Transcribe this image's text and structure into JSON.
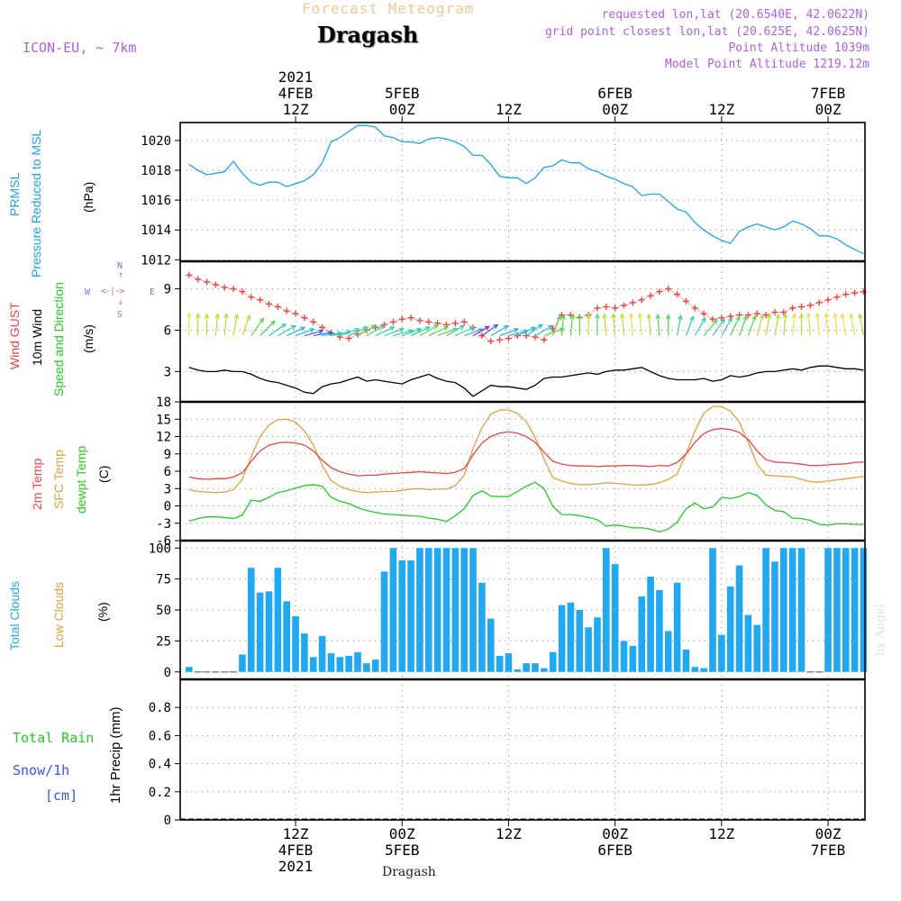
{
  "header": {
    "title": "Forecast Meteogram",
    "location": "Dragash",
    "model": "ICON-EU, ~ 7km",
    "requested": "requested lon,lat (20.6540E, 42.0622N)",
    "gridpoint": "grid point closest lon,lat (20.625E, 42.0625N)",
    "altitude": "Point Altitude 1039m",
    "model_altitude": "Model Point Altitude 1219.12m"
  },
  "footer": {
    "location": "Dragash",
    "watermark": "by Angel"
  },
  "time_axis": {
    "year": "2021",
    "ticks": [
      {
        "hour": 12,
        "top": "12Z",
        "bottom": "12Z",
        "date": "4FEB"
      },
      {
        "hour": 24,
        "top": "00Z",
        "bottom": "00Z",
        "date": "5FEB"
      },
      {
        "hour": 36,
        "top": "12Z",
        "bottom": "12Z",
        "date": ""
      },
      {
        "hour": 48,
        "top": "00Z",
        "bottom": "00Z",
        "date": "6FEB"
      },
      {
        "hour": 60,
        "top": "12Z",
        "bottom": "12Z",
        "date": ""
      },
      {
        "hour": 72,
        "top": "00Z",
        "bottom": "00Z",
        "date": "7FEB"
      }
    ]
  },
  "panel_labels": {
    "pressure": {
      "short": "PRMSL",
      "long": "Pressure Reduced to MSL",
      "unit": "(hPa)"
    },
    "wind": {
      "gust": "Wind GUST",
      "wind": "10m Wind",
      "speed": "Speed and Direction",
      "unit": "(m/s)",
      "compass": {
        "n": "N",
        "s": "S",
        "w": "W",
        "e": "E"
      }
    },
    "temp": {
      "t2m": "2m Temp",
      "sfc": "SFC Temp",
      "dewpt": "dewpt Temp",
      "unit": "(C)"
    },
    "clouds": {
      "total": "Total Clouds",
      "low": "Low Clouds",
      "unit": "(%)"
    },
    "precip": {
      "rain": "Total  Rain",
      "snow": "Snow/1h",
      "cm": "[cm]",
      "unit": "1hr Precip (mm)"
    }
  },
  "colors": {
    "pressure": "#1aa6e6",
    "gust": "#ee4444",
    "wind": "#000000",
    "t2m": "#ee4444",
    "sfc": "#e0a040",
    "dewpt": "#22cc22",
    "clouds": "#22a8f0",
    "snow": "#3355ee",
    "compass": "#b060d8"
  },
  "chart_data": [
    {
      "type": "line",
      "ylabel": "(hPa)",
      "ylim": [
        1011.9,
        1021.2
      ],
      "yticks": [
        1012,
        1014,
        1016,
        1018,
        1020
      ],
      "x": [
        0,
        1,
        2,
        3,
        4,
        5,
        6,
        7,
        8,
        9,
        10,
        11,
        12,
        13,
        14,
        15,
        16,
        17,
        18,
        19,
        20,
        21,
        22,
        23,
        24,
        25,
        26,
        27,
        28,
        29,
        30,
        31,
        32,
        33,
        34,
        35,
        36,
        37,
        38,
        39,
        40,
        41,
        42,
        43,
        44,
        45,
        46,
        47,
        48,
        49,
        50,
        51,
        52,
        53,
        54,
        55,
        56,
        57,
        58,
        59,
        60,
        61,
        62,
        63,
        64,
        65,
        66,
        67,
        68,
        69,
        70,
        71,
        72,
        73,
        74,
        75,
        76
      ],
      "series": [
        {
          "name": "PRMSL",
          "values": [
            1018.4,
            1018.0,
            1017.7,
            1017.8,
            1017.9,
            1018.6,
            1017.8,
            1017.2,
            1017.0,
            1017.2,
            1017.2,
            1016.9,
            1017.1,
            1017.3,
            1017.7,
            1018.5,
            1019.9,
            1020.2,
            1020.6,
            1021.0,
            1021.0,
            1020.9,
            1020.3,
            1020.2,
            1019.9,
            1019.9,
            1019.8,
            1020.1,
            1020.2,
            1020.1,
            1019.9,
            1019.6,
            1019.0,
            1019.0,
            1018.4,
            1017.6,
            1017.5,
            1017.5,
            1017.1,
            1017.5,
            1018.2,
            1018.3,
            1018.7,
            1018.5,
            1018.5,
            1018.1,
            1017.9,
            1017.6,
            1017.4,
            1017.1,
            1016.9,
            1016.3,
            1016.4,
            1016.4,
            1015.9,
            1015.4,
            1015.2,
            1014.5,
            1014.0,
            1013.6,
            1013.3,
            1013.1,
            1013.9,
            1014.2,
            1014.4,
            1014.2,
            1014.0,
            1014.2,
            1014.6,
            1014.4,
            1014.1,
            1013.6,
            1013.6,
            1013.4,
            1013.0,
            1012.7,
            1012.4
          ]
        }
      ]
    },
    {
      "type": "line",
      "ylabel": "(m/s)",
      "ylim": [
        0.8,
        11.0
      ],
      "yticks": [
        3,
        6,
        9
      ],
      "x": [
        0,
        1,
        2,
        3,
        4,
        5,
        6,
        7,
        8,
        9,
        10,
        11,
        12,
        13,
        14,
        15,
        16,
        17,
        18,
        19,
        20,
        21,
        22,
        23,
        24,
        25,
        26,
        27,
        28,
        29,
        30,
        31,
        32,
        33,
        34,
        35,
        36,
        37,
        38,
        39,
        40,
        41,
        42,
        43,
        44,
        45,
        46,
        47,
        48,
        49,
        50,
        51,
        52,
        53,
        54,
        55,
        56,
        57,
        58,
        59,
        60,
        61,
        62,
        63,
        64,
        65,
        66,
        67,
        68,
        69,
        70,
        71,
        72,
        73,
        74,
        75,
        76
      ],
      "series": [
        {
          "name": "Wind GUST",
          "values": [
            10.0,
            9.7,
            9.5,
            9.3,
            9.1,
            9.0,
            8.8,
            8.4,
            8.2,
            7.9,
            7.7,
            7.4,
            7.2,
            6.9,
            6.6,
            6.2,
            5.8,
            5.5,
            5.4,
            5.7,
            6.0,
            6.2,
            6.4,
            6.6,
            6.8,
            6.9,
            6.7,
            6.6,
            6.5,
            6.4,
            6.5,
            6.6,
            6.2,
            5.6,
            5.2,
            5.3,
            5.4,
            5.6,
            5.6,
            5.5,
            5.3,
            6.1,
            7.1,
            7.1,
            6.9,
            7.1,
            7.6,
            7.7,
            7.6,
            7.8,
            8.0,
            8.2,
            8.5,
            8.8,
            9.0,
            8.6,
            8.1,
            7.6,
            7.2,
            6.8,
            6.9,
            7.0,
            7.1,
            7.1,
            7.2,
            7.1,
            7.3,
            7.3,
            7.6,
            7.7,
            7.8,
            8.0,
            8.2,
            8.4,
            8.6,
            8.7,
            8.8
          ]
        },
        {
          "name": "10m Wind",
          "values": [
            3.3,
            3.1,
            3.0,
            3.0,
            3.1,
            3.0,
            3.0,
            2.8,
            2.5,
            2.3,
            2.2,
            2.0,
            1.8,
            1.5,
            1.4,
            1.9,
            2.1,
            2.2,
            2.4,
            2.6,
            2.3,
            2.4,
            2.3,
            2.2,
            2.1,
            2.4,
            2.6,
            2.8,
            2.5,
            2.3,
            2.2,
            1.8,
            1.2,
            1.6,
            2.0,
            1.9,
            1.9,
            1.8,
            1.7,
            2.0,
            2.5,
            2.6,
            2.6,
            2.7,
            2.8,
            2.9,
            2.8,
            3.0,
            3.1,
            3.1,
            3.2,
            3.3,
            3.0,
            2.7,
            2.5,
            2.4,
            2.4,
            2.4,
            2.5,
            2.3,
            2.4,
            2.7,
            2.6,
            2.7,
            2.9,
            3.0,
            3.0,
            3.1,
            3.2,
            3.1,
            3.3,
            3.4,
            3.4,
            3.3,
            3.2,
            3.2,
            3.1
          ]
        }
      ]
    },
    {
      "type": "line",
      "ylabel": "(C)",
      "ylim": [
        -6,
        18
      ],
      "yticks": [
        -6,
        -3,
        0,
        3,
        6,
        9,
        12,
        15,
        18
      ],
      "x": [
        0,
        1,
        2,
        3,
        4,
        5,
        6,
        7,
        8,
        9,
        10,
        11,
        12,
        13,
        14,
        15,
        16,
        17,
        18,
        19,
        20,
        21,
        22,
        23,
        24,
        25,
        26,
        27,
        28,
        29,
        30,
        31,
        32,
        33,
        34,
        35,
        36,
        37,
        38,
        39,
        40,
        41,
        42,
        43,
        44,
        45,
        46,
        47,
        48,
        49,
        50,
        51,
        52,
        53,
        54,
        55,
        56,
        57,
        58,
        59,
        60,
        61,
        62,
        63,
        64,
        65,
        66,
        67,
        68,
        69,
        70,
        71,
        72,
        73,
        74,
        75,
        76
      ],
      "series": [
        {
          "name": "2m Temp",
          "values": [
            5.0,
            4.7,
            4.6,
            4.7,
            4.7,
            5.0,
            5.7,
            7.7,
            9.5,
            10.5,
            10.9,
            11.0,
            10.9,
            10.5,
            9.5,
            7.9,
            6.6,
            5.9,
            5.5,
            5.2,
            5.3,
            5.3,
            5.5,
            5.6,
            5.7,
            5.8,
            5.9,
            5.8,
            5.7,
            5.6,
            5.8,
            6.5,
            8.8,
            10.9,
            12.0,
            12.6,
            12.8,
            12.6,
            12.0,
            11.0,
            9.3,
            7.7,
            7.2,
            7.0,
            6.9,
            6.9,
            6.8,
            6.9,
            6.9,
            7.0,
            7.0,
            6.9,
            6.8,
            7.0,
            6.9,
            7.5,
            9.0,
            11.0,
            12.5,
            13.2,
            13.4,
            13.2,
            12.7,
            11.5,
            9.5,
            8.0,
            7.6,
            7.5,
            7.4,
            7.2,
            7.0,
            7.0,
            7.1,
            7.2,
            7.3,
            7.5,
            7.6
          ]
        },
        {
          "name": "SFC Temp",
          "values": [
            2.8,
            2.5,
            2.4,
            2.3,
            2.4,
            2.8,
            4.6,
            8.5,
            12.0,
            14.0,
            14.9,
            15.0,
            14.5,
            13.0,
            10.5,
            7.0,
            4.4,
            3.4,
            2.8,
            2.5,
            2.3,
            2.4,
            2.5,
            2.5,
            2.7,
            2.9,
            3.0,
            2.8,
            2.9,
            2.9,
            3.5,
            5.3,
            10.0,
            13.5,
            15.9,
            16.6,
            16.6,
            16.0,
            14.6,
            11.8,
            8.1,
            4.9,
            4.3,
            3.9,
            3.7,
            3.7,
            3.8,
            4.0,
            3.9,
            3.8,
            3.6,
            3.6,
            3.7,
            4.0,
            4.6,
            5.5,
            9.0,
            13.0,
            16.0,
            17.2,
            17.2,
            16.4,
            14.5,
            11.0,
            7.2,
            5.3,
            5.2,
            5.1,
            5.0,
            4.6,
            4.2,
            4.1,
            4.3,
            4.5,
            4.7,
            4.9,
            5.1
          ]
        },
        {
          "name": "dewpt Temp",
          "values": [
            -2.6,
            -2.2,
            -1.9,
            -1.9,
            -2.0,
            -2.2,
            -1.6,
            1.0,
            0.8,
            1.5,
            2.3,
            2.6,
            3.1,
            3.5,
            3.7,
            3.4,
            1.5,
            0.8,
            0.4,
            -0.3,
            -0.8,
            -1.1,
            -1.4,
            -1.5,
            -1.6,
            -1.7,
            -1.8,
            -2.1,
            -2.3,
            -2.7,
            -1.7,
            -0.5,
            1.8,
            2.6,
            1.7,
            1.6,
            1.6,
            2.5,
            3.4,
            4.1,
            3.0,
            -0.1,
            -1.5,
            -1.5,
            -1.7,
            -2.0,
            -2.4,
            -3.5,
            -3.3,
            -3.5,
            -3.8,
            -3.8,
            -4.0,
            -4.5,
            -4.0,
            -2.8,
            -0.5,
            0.5,
            -0.5,
            -0.2,
            1.5,
            1.3,
            1.6,
            2.3,
            1.8,
            0.2,
            -0.8,
            -1.0,
            -2.1,
            -2.2,
            -2.5,
            -3.2,
            -3.3,
            -3.1,
            -3.1,
            -3.2,
            -3.2
          ]
        }
      ]
    },
    {
      "type": "bar",
      "ylabel": "(%)",
      "ylim": [
        -6,
        106
      ],
      "yticks": [
        0,
        25,
        50,
        75,
        100
      ],
      "x": [
        0,
        1,
        2,
        3,
        4,
        5,
        6,
        7,
        8,
        9,
        10,
        11,
        12,
        13,
        14,
        15,
        16,
        17,
        18,
        19,
        20,
        21,
        22,
        23,
        24,
        25,
        26,
        27,
        28,
        29,
        30,
        31,
        32,
        33,
        34,
        35,
        36,
        37,
        38,
        39,
        40,
        41,
        42,
        43,
        44,
        45,
        46,
        47,
        48,
        49,
        50,
        51,
        52,
        53,
        54,
        55,
        56,
        57,
        58,
        59,
        60,
        61,
        62,
        63,
        64,
        65,
        66,
        67,
        68,
        69,
        70,
        71,
        72,
        73,
        74,
        75,
        76
      ],
      "series": [
        {
          "name": "Total Clouds",
          "values": [
            4,
            0,
            0,
            0,
            0,
            0,
            14,
            84,
            64,
            65,
            84,
            57,
            45,
            31,
            12,
            29,
            15,
            12,
            13,
            16,
            7,
            10,
            81,
            100,
            90,
            90,
            100,
            100,
            100,
            100,
            100,
            100,
            100,
            72,
            43,
            13,
            15,
            2,
            7,
            7,
            3,
            16,
            54,
            56,
            50,
            36,
            44,
            100,
            87,
            25,
            21,
            61,
            77,
            66,
            33,
            72,
            18,
            4,
            3,
            100,
            30,
            69,
            86,
            46,
            38,
            100,
            89,
            100,
            100,
            100,
            0,
            0,
            100,
            100,
            100,
            100,
            100
          ]
        }
      ]
    },
    {
      "type": "line",
      "ylabel": "1hr Precip (mm)",
      "ylim": [
        0,
        1.0
      ],
      "yticks": [
        0,
        0.2,
        0.4,
        0.6,
        0.8
      ],
      "x": [
        0,
        1,
        2,
        3,
        4,
        5,
        6,
        7,
        8,
        9,
        10,
        11,
        12,
        13,
        14,
        15,
        16,
        17,
        18,
        19,
        20,
        21,
        22,
        23,
        24,
        25,
        26,
        27,
        28,
        29,
        30,
        31,
        32,
        33,
        34,
        35,
        36,
        37,
        38,
        39,
        40,
        41,
        42,
        43,
        44,
        45,
        46,
        47,
        48,
        49,
        50,
        51,
        52,
        53,
        54,
        55,
        56,
        57,
        58,
        59,
        60,
        61,
        62,
        63,
        64,
        65,
        66,
        67,
        68,
        69,
        70,
        71,
        72,
        73,
        74,
        75,
        76
      ],
      "series": [
        {
          "name": "Total Rain",
          "values": [
            0,
            0,
            0,
            0,
            0,
            0,
            0,
            0,
            0,
            0,
            0,
            0,
            0,
            0,
            0,
            0,
            0,
            0,
            0,
            0,
            0,
            0,
            0,
            0,
            0,
            0,
            0,
            0,
            0,
            0,
            0,
            0,
            0,
            0,
            0,
            0,
            0,
            0,
            0,
            0,
            0,
            0,
            0,
            0,
            0,
            0,
            0,
            0,
            0,
            0,
            0,
            0,
            0,
            0,
            0,
            0,
            0,
            0,
            0,
            0,
            0,
            0,
            0,
            0,
            0,
            0,
            0,
            0,
            0,
            0,
            0,
            0,
            0,
            0,
            0,
            0,
            0
          ]
        }
      ]
    }
  ],
  "wind_dir": [
    180,
    180,
    180,
    185,
    185,
    190,
    200,
    215,
    225,
    235,
    240,
    245,
    250,
    255,
    260,
    262,
    258,
    250,
    245,
    240,
    240,
    245,
    250,
    255,
    250,
    245,
    240,
    245,
    250,
    240,
    245,
    250,
    240,
    235,
    240,
    250,
    255,
    245,
    235,
    240,
    250,
    200,
    185,
    185,
    180,
    180,
    180,
    175,
    175,
    175,
    175,
    175,
    175,
    175,
    180,
    190,
    200,
    210,
    220,
    215,
    210,
    205,
    200,
    200,
    195,
    190,
    190,
    185,
    185,
    180,
    175,
    175,
    175,
    175,
    170,
    170,
    170
  ]
}
